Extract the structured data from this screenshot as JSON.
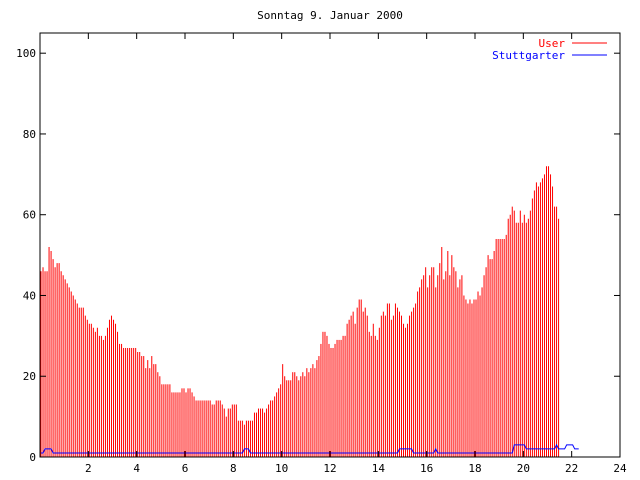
{
  "chart_data": {
    "type": "bar",
    "title": "Sonntag 9. Januar 2000",
    "xlabel": "",
    "ylabel": "",
    "xlim": [
      0,
      24
    ],
    "ylim": [
      0,
      105
    ],
    "x_ticks": [
      2,
      4,
      6,
      8,
      10,
      12,
      14,
      16,
      18,
      20,
      22,
      24
    ],
    "y_ticks": [
      0,
      20,
      40,
      60,
      80,
      100
    ],
    "legend_position": "top-right",
    "grid": false,
    "series": [
      {
        "name": "User",
        "style": "impulses",
        "color": "#ff0000",
        "points_per_hour": 12,
        "values": [
          46,
          47,
          46,
          46,
          52,
          51,
          49,
          47,
          48,
          48,
          46,
          45,
          44,
          43,
          42,
          41,
          40,
          39,
          38,
          37,
          37,
          37,
          35,
          34,
          33,
          33,
          32,
          31,
          32,
          30,
          30,
          29,
          30,
          32,
          34,
          35,
          34,
          33,
          31,
          28,
          28,
          27,
          27,
          27,
          27,
          27,
          27,
          27,
          26,
          26,
          25,
          25,
          22,
          24,
          22,
          25,
          23,
          23,
          21,
          20,
          18,
          18,
          18,
          18,
          18,
          16,
          16,
          16,
          16,
          16,
          17,
          17,
          16,
          17,
          17,
          16,
          15,
          14,
          14,
          14,
          14,
          14,
          14,
          14,
          14,
          13,
          13,
          14,
          14,
          14,
          13,
          12,
          10,
          12,
          12,
          13,
          13,
          13,
          9,
          9,
          9,
          8,
          9,
          9,
          9,
          9,
          11,
          11,
          12,
          12,
          12,
          11,
          12,
          13,
          14,
          14,
          15,
          16,
          17,
          18,
          23,
          20,
          19,
          19,
          19,
          21,
          21,
          20,
          19,
          20,
          21,
          20,
          22,
          21,
          22,
          23,
          22,
          24,
          25,
          28,
          31,
          31,
          30,
          28,
          27,
          27,
          28,
          29,
          29,
          29,
          30,
          30,
          33,
          34,
          35,
          36,
          33,
          37,
          39,
          39,
          36,
          37,
          35,
          31,
          30,
          33,
          30,
          29,
          32,
          35,
          36,
          35,
          38,
          38,
          34,
          35,
          38,
          37,
          36,
          35,
          33,
          32,
          33,
          35,
          36,
          37,
          38,
          41,
          42,
          44,
          45,
          47,
          42,
          45,
          47,
          47,
          42,
          45,
          48,
          52,
          44,
          46,
          51,
          45,
          50,
          47,
          46,
          42,
          44,
          45,
          40,
          39,
          38,
          39,
          38,
          39,
          39,
          41,
          40,
          42,
          45,
          47,
          50,
          49,
          49,
          51,
          54,
          54,
          54,
          54,
          54,
          55,
          59,
          60,
          62,
          61,
          58,
          58,
          61,
          58,
          60,
          58,
          59,
          61,
          64,
          66,
          68,
          67,
          68,
          69,
          70,
          72,
          72,
          70,
          67,
          62,
          62,
          59
        ]
      },
      {
        "name": "Stuttgarter",
        "style": "line",
        "color": "#0000ff",
        "points_per_hour": 12,
        "values": [
          1,
          1,
          2,
          2,
          2,
          2,
          1,
          1,
          1,
          1,
          1,
          1,
          1,
          1,
          1,
          1,
          1,
          1,
          1,
          1,
          1,
          1,
          1,
          1,
          1,
          1,
          1,
          1,
          1,
          1,
          1,
          1,
          1,
          1,
          1,
          1,
          1,
          1,
          1,
          1,
          1,
          1,
          1,
          1,
          1,
          1,
          1,
          1,
          1,
          1,
          1,
          1,
          1,
          1,
          1,
          1,
          1,
          1,
          1,
          1,
          1,
          1,
          1,
          1,
          1,
          1,
          1,
          1,
          1,
          1,
          1,
          1,
          1,
          1,
          1,
          1,
          1,
          1,
          1,
          1,
          1,
          1,
          1,
          1,
          1,
          1,
          1,
          1,
          1,
          1,
          1,
          1,
          1,
          1,
          1,
          1,
          1,
          1,
          1,
          1,
          1,
          2,
          2,
          2,
          1,
          1,
          1,
          1,
          1,
          1,
          1,
          1,
          1,
          1,
          1,
          1,
          1,
          1,
          1,
          1,
          1,
          1,
          1,
          1,
          1,
          1,
          1,
          1,
          1,
          1,
          1,
          1,
          1,
          1,
          1,
          1,
          1,
          1,
          1,
          1,
          1,
          1,
          1,
          1,
          1,
          1,
          1,
          1,
          1,
          1,
          1,
          1,
          1,
          1,
          1,
          1,
          1,
          1,
          1,
          1,
          1,
          1,
          1,
          1,
          1,
          1,
          1,
          1,
          1,
          1,
          1,
          1,
          1,
          1,
          1,
          1,
          1,
          1,
          2,
          2,
          2,
          2,
          2,
          2,
          2,
          1,
          1,
          1,
          1,
          1,
          1,
          1,
          1,
          1,
          1,
          1,
          2,
          1,
          1,
          1,
          1,
          1,
          1,
          1,
          1,
          1,
          1,
          1,
          1,
          1,
          1,
          1,
          1,
          1,
          1,
          1,
          1,
          1,
          1,
          1,
          1,
          1,
          1,
          1,
          1,
          1,
          1,
          1,
          1,
          1,
          1,
          1,
          1,
          1,
          1,
          3,
          3,
          3,
          3,
          3,
          3,
          2,
          2,
          2,
          2,
          2,
          2,
          2,
          2,
          2,
          2,
          2,
          2,
          2,
          2,
          2,
          3,
          2,
          2,
          2,
          2,
          3,
          3,
          3,
          3,
          2,
          2,
          2
        ]
      }
    ]
  }
}
